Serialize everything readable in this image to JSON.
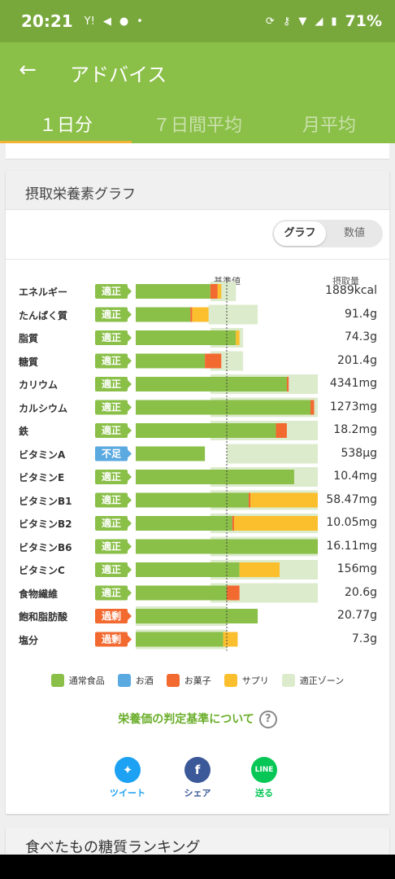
{
  "status_bar": {
    "time": "20:21",
    "battery": "71%",
    "colors": {
      "bg": "#78a83c"
    }
  },
  "app_bar": {
    "title": "アドバイス",
    "back_icon": "arrow-left-icon"
  },
  "tabs": [
    {
      "label": "１日分",
      "active": true
    },
    {
      "label": "７日間平均",
      "active": false
    },
    {
      "label": "月平均",
      "active": false
    }
  ],
  "card": {
    "title": "摂取栄養素グラフ",
    "toggle": {
      "graph": "グラフ",
      "values": "数値",
      "selected": "グラフ"
    },
    "col_reference": "基準値",
    "col_intake": "摂取量"
  },
  "colors": {
    "normal": "#8abf48",
    "alcohol": "#5aa9e0",
    "snack": "#f26a30",
    "supplement": "#fbbf2d",
    "zone": "#dcebcc",
    "badge_ok": "#8abf48",
    "badge_low": "#5aa9e0",
    "badge_over": "#f26a30"
  },
  "chart_data": {
    "type": "bar",
    "stacked": true,
    "horizontal": true,
    "reference_mark": 50,
    "x_range": [
      0,
      100
    ],
    "rows": [
      {
        "name": "エネルギー",
        "status": "適正",
        "value": "1889kcal",
        "normal": 41,
        "snack": 4,
        "supplement": 2,
        "zone": [
          41,
          55
        ]
      },
      {
        "name": "たんぱく質",
        "status": "適正",
        "value": "91.4g",
        "normal": 30,
        "snack": 1,
        "supplement": 9,
        "zone": [
          40,
          67
        ]
      },
      {
        "name": "脂質",
        "status": "適正",
        "value": "74.3g",
        "normal": 55,
        "snack": 0,
        "supplement": 2,
        "zone": [
          41,
          59
        ]
      },
      {
        "name": "糖質",
        "status": "適正",
        "value": "201.4g",
        "normal": 38,
        "snack": 9,
        "supplement": 0,
        "zone": [
          41,
          59
        ]
      },
      {
        "name": "カリウム",
        "status": "適正",
        "value": "4341mg",
        "normal": 83,
        "snack": 1,
        "supplement": 0,
        "zone": [
          41,
          100
        ]
      },
      {
        "name": "カルシウム",
        "status": "適正",
        "value": "1273mg",
        "normal": 96,
        "snack": 2,
        "supplement": 0,
        "zone": [
          41,
          100
        ]
      },
      {
        "name": "鉄",
        "status": "適正",
        "value": "18.2mg",
        "normal": 77,
        "snack": 6,
        "supplement": 0,
        "zone": [
          41,
          100
        ]
      },
      {
        "name": "ビタミンA",
        "status": "不足",
        "value": "538μg",
        "normal": 38,
        "snack": 0,
        "supplement": 0,
        "zone": [
          50,
          100
        ]
      },
      {
        "name": "ビタミンE",
        "status": "適正",
        "value": "10.4mg",
        "normal": 87,
        "snack": 0,
        "supplement": 0,
        "zone": [
          41,
          100
        ]
      },
      {
        "name": "ビタミンB1",
        "status": "適正",
        "value": "58.47mg",
        "normal": 62,
        "snack": 1,
        "supplement": 38,
        "zone": [
          41,
          100
        ]
      },
      {
        "name": "ビタミンB2",
        "status": "適正",
        "value": "10.05mg",
        "normal": 53,
        "snack": 1,
        "supplement": 47,
        "zone": [
          41,
          100
        ]
      },
      {
        "name": "ビタミンB6",
        "status": "適正",
        "value": "16.11mg",
        "normal": 100,
        "snack": 0,
        "supplement": 0,
        "zone": [
          41,
          100
        ]
      },
      {
        "name": "ビタミンC",
        "status": "適正",
        "value": "156mg",
        "normal": 57,
        "snack": 0,
        "supplement": 22,
        "zone": [
          41,
          100
        ]
      },
      {
        "name": "食物繊維",
        "status": "適正",
        "value": "20.6g",
        "normal": 50,
        "snack": 7,
        "supplement": 0,
        "zone": [
          41,
          100
        ]
      },
      {
        "name": "飽和脂肪酸",
        "status": "過剰",
        "value": "20.77g",
        "normal": 67,
        "snack": 0,
        "supplement": 0,
        "zone": [
          0,
          50
        ]
      },
      {
        "name": "塩分",
        "status": "過剰",
        "value": "7.3g",
        "normal": 48,
        "snack": 0,
        "supplement": 8,
        "zone": [
          0,
          50
        ]
      }
    ]
  },
  "legend": [
    {
      "label": "通常食品",
      "color_key": "normal"
    },
    {
      "label": "お酒",
      "color_key": "alcohol"
    },
    {
      "label": "お菓子",
      "color_key": "snack"
    },
    {
      "label": "サプリ",
      "color_key": "supplement"
    },
    {
      "label": "適正ゾーン",
      "color_key": "zone"
    }
  ],
  "criteria_link": "栄養価の判定基準について",
  "share": [
    {
      "label": "ツイート",
      "icon": "twitter-icon",
      "color": "#1da1f2"
    },
    {
      "label": "シェア",
      "icon": "facebook-icon",
      "color": "#3b5998"
    },
    {
      "label": "送る",
      "icon": "line-icon",
      "color": "#06c755"
    }
  ],
  "next_card_title": "食べたもの糖質ランキング"
}
